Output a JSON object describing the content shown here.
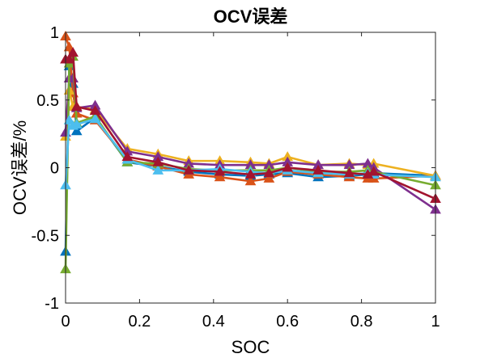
{
  "chart_data": {
    "type": "line",
    "title": "OCV误差",
    "xlabel": "SOC",
    "ylabel": "OCV误差/%",
    "xlim": [
      0,
      1
    ],
    "ylim": [
      -1,
      1
    ],
    "xticks": [
      0,
      0.2,
      0.4,
      0.6,
      0.8,
      1
    ],
    "xtick_labels": [
      "0",
      "0.2",
      "0.4",
      "0.6",
      "0.8",
      "1"
    ],
    "yticks": [
      1,
      0.5,
      0,
      -0.5,
      -1
    ],
    "ytick_labels": [
      "1",
      "0.5",
      "0",
      "-0.5",
      "-1"
    ],
    "grid": false,
    "marker": "triangle",
    "x": [
      0,
      0.01,
      0.02,
      0.03,
      0.08,
      0.167,
      0.25,
      0.333,
      0.417,
      0.5,
      0.55,
      0.6,
      0.683,
      0.767,
      0.817,
      0.833,
      1.0
    ],
    "series": [
      {
        "color": "#0072BD",
        "values": [
          -0.62,
          0.75,
          0.62,
          0.27,
          0.37,
          0.04,
          0.01,
          -0.03,
          -0.05,
          -0.06,
          -0.05,
          -0.04,
          -0.07,
          -0.06,
          -0.05,
          -0.04,
          -0.06
        ]
      },
      {
        "color": "#D95319",
        "values": [
          0.97,
          0.89,
          0.55,
          0.4,
          0.35,
          0.06,
          0.01,
          -0.05,
          -0.07,
          -0.1,
          -0.08,
          -0.03,
          -0.05,
          -0.07,
          -0.08,
          -0.08,
          -0.06
        ]
      },
      {
        "color": "#EDB120",
        "values": [
          0.23,
          0.57,
          0.45,
          0.45,
          0.43,
          0.14,
          0.1,
          0.05,
          0.05,
          0.04,
          0.03,
          0.08,
          0.02,
          0.03,
          0.02,
          0.03,
          -0.06
        ]
      },
      {
        "color": "#7E2F8E",
        "values": [
          0.26,
          0.66,
          0.66,
          0.44,
          0.46,
          0.12,
          0.08,
          0.03,
          0.02,
          0.02,
          0.02,
          0.04,
          0.02,
          0.02,
          0.03,
          0.0,
          -0.31
        ]
      },
      {
        "color": "#77AC30",
        "values": [
          -0.75,
          0.77,
          0.82,
          0.33,
          0.38,
          0.04,
          0.03,
          -0.01,
          -0.02,
          -0.02,
          -0.02,
          0.0,
          -0.03,
          -0.03,
          -0.02,
          -0.03,
          -0.13
        ]
      },
      {
        "color": "#4DBEEE",
        "values": [
          -0.13,
          0.35,
          0.31,
          0.32,
          0.36,
          0.06,
          -0.02,
          -0.02,
          -0.01,
          -0.03,
          -0.04,
          -0.02,
          -0.04,
          -0.05,
          -0.04,
          -0.05,
          -0.07
        ]
      },
      {
        "color": "#A2142F",
        "values": [
          0.8,
          0.8,
          0.85,
          0.45,
          0.42,
          0.08,
          0.04,
          -0.02,
          -0.03,
          -0.05,
          -0.04,
          0.0,
          -0.02,
          -0.04,
          -0.05,
          -0.03,
          -0.23
        ]
      }
    ]
  }
}
